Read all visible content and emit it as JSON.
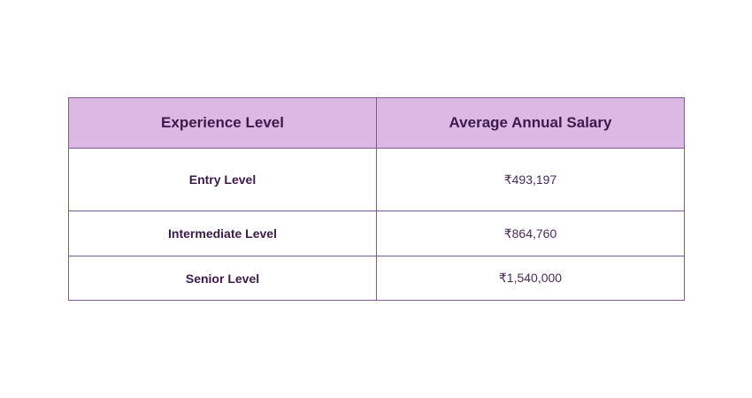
{
  "table": {
    "headers": [
      "Experience Level",
      "Average Annual Salary"
    ],
    "rows": [
      {
        "level": "Entry Level",
        "salary": "₹493,197"
      },
      {
        "level": "Intermediate Level",
        "salary": "₹864,760"
      },
      {
        "level": "Senior Level",
        "salary": "₹1,540,000"
      }
    ]
  },
  "colors": {
    "header_bg": "#dcb9e4",
    "border": "#7e5a8e",
    "text": "#3c1a4a"
  }
}
